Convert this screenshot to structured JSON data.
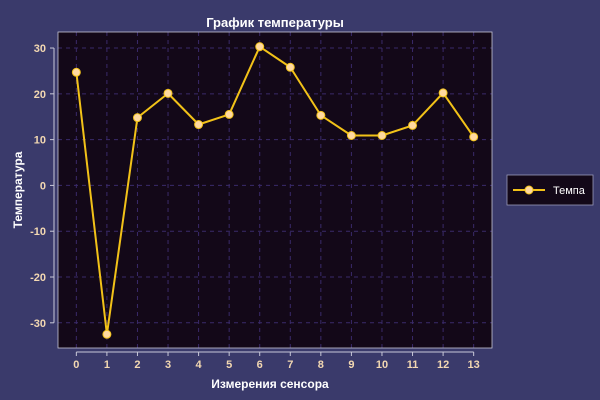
{
  "colors": {
    "page_background": "#3a3a6b",
    "plot_background": "#130818",
    "line": "#f2c218",
    "marker_fill": "#ffd9a0",
    "marker_edge": "#f2c218",
    "grid": "#3a2a6a",
    "text": "#ffffff",
    "tick_text": "#f3d8b2",
    "axis": "#c8c8d8"
  },
  "chart_data": {
    "type": "line",
    "title": "График температуры",
    "xlabel": "Измерения сенсора",
    "ylabel": "Температура",
    "x": [
      0,
      1,
      2,
      3,
      4,
      5,
      6,
      7,
      8,
      9,
      10,
      11,
      12,
      13
    ],
    "xticks": [
      0,
      1,
      2,
      3,
      4,
      5,
      6,
      7,
      8,
      9,
      10,
      11,
      12,
      13
    ],
    "yticks": [
      30,
      20,
      10,
      0,
      -10,
      -20,
      -30
    ],
    "ytick_labels": [
      "30",
      "20",
      "10",
      "0",
      "-10",
      "-20",
      "-30"
    ],
    "xlim": [
      -0.6,
      13.6
    ],
    "ylim": [
      -35.5,
      33.5
    ],
    "grid": true,
    "legend_position": "right",
    "series": [
      {
        "name": "Темпа",
        "values": [
          24.7,
          -32.5,
          14.8,
          20.1,
          13.3,
          15.5,
          30.3,
          25.8,
          15.3,
          10.9,
          10.9,
          13.1,
          20.2,
          10.6
        ]
      }
    ]
  }
}
